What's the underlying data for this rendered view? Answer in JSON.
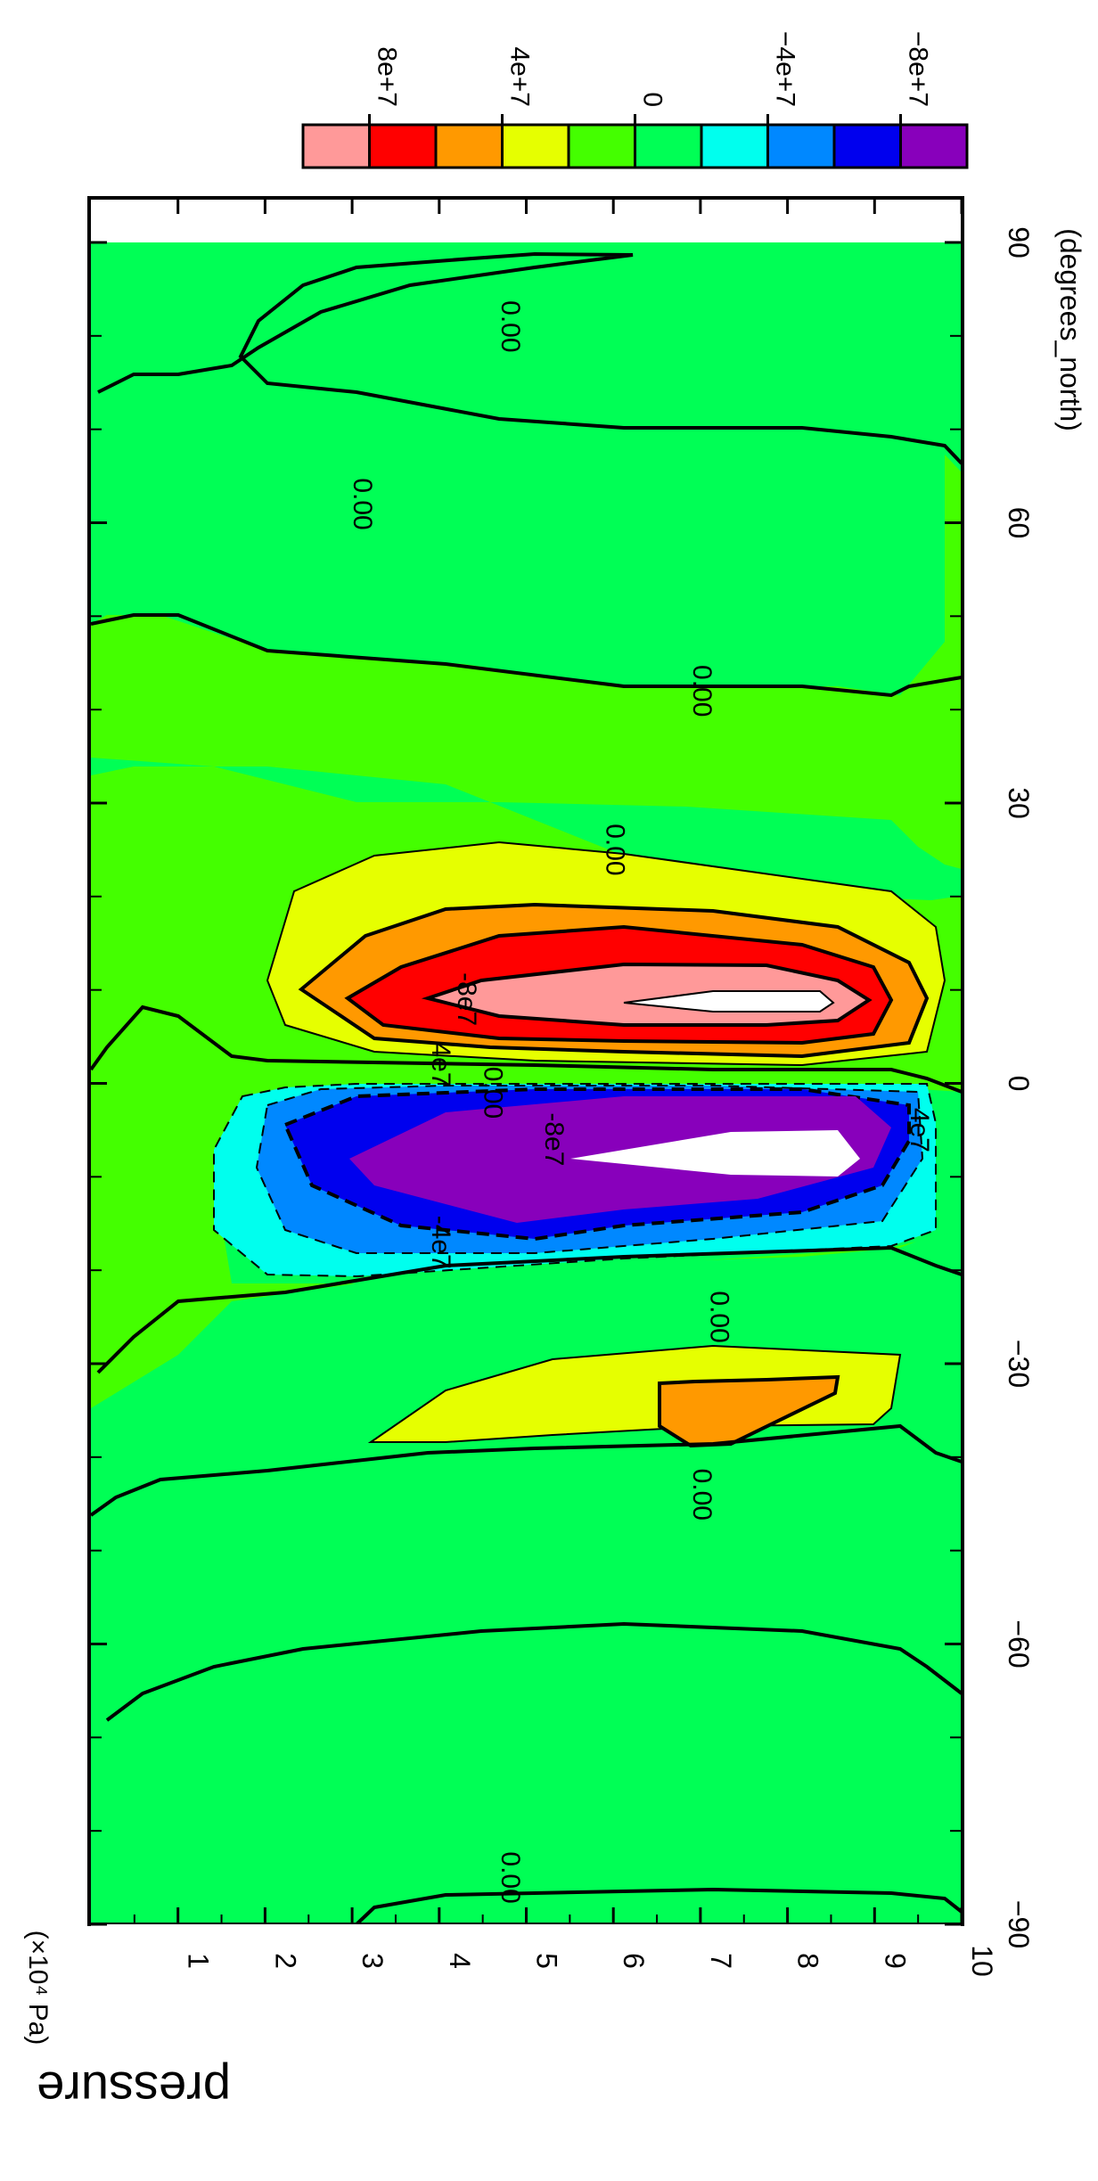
{
  "chart_data": {
    "type": "contour",
    "x_axis": {
      "label": "pressure",
      "unit": "(×10⁴ Pa)",
      "ticks": [
        "1",
        "2",
        "3",
        "4",
        "5",
        "6",
        "7",
        "8",
        "9",
        "10"
      ],
      "range": [
        0,
        10
      ]
    },
    "y_axis": {
      "label": "(degrees_north)",
      "ticks": [
        "−90",
        "−60",
        "−30",
        "0",
        "30",
        "60",
        "90"
      ],
      "range": [
        -90,
        90
      ]
    },
    "colorbar": {
      "labels": [
        "8e+7",
        "4e+7",
        "0",
        "−4e+7",
        "−8e+7"
      ],
      "colors": [
        "#ff9999",
        "#ff0000",
        "#ff9900",
        "#e6ff00",
        "#44ff00",
        "#00ff55",
        "#00ffee",
        "#0088ff",
        "#0000ee",
        "#8800bb"
      ]
    },
    "contour_labels": [
      {
        "text": "0.00",
        "lat": 81,
        "p": 4.8
      },
      {
        "text": "0.00",
        "lat": 62,
        "p": 3.1
      },
      {
        "text": "0.00",
        "lat": 42,
        "p": 7.0
      },
      {
        "text": "0.00",
        "lat": 25,
        "p": 6.0
      },
      {
        "text": "-8e7",
        "lat": 9,
        "p": 4.3
      },
      {
        "text": "4e7",
        "lat": 2,
        "p": 4.0
      },
      {
        "text": "0.00",
        "lat": -1,
        "p": 4.6
      },
      {
        "text": "-8e7",
        "lat": -6,
        "p": 5.3
      },
      {
        "text": "4e7",
        "lat": -5,
        "p": 9.5
      },
      {
        "text": "-4e7",
        "lat": -17,
        "p": 4.0
      },
      {
        "text": "0.00",
        "lat": -25,
        "p": 7.2
      },
      {
        "text": "0.00",
        "lat": -44,
        "p": 7.0
      },
      {
        "text": "0.00",
        "lat": -85,
        "p": 4.8
      }
    ]
  }
}
